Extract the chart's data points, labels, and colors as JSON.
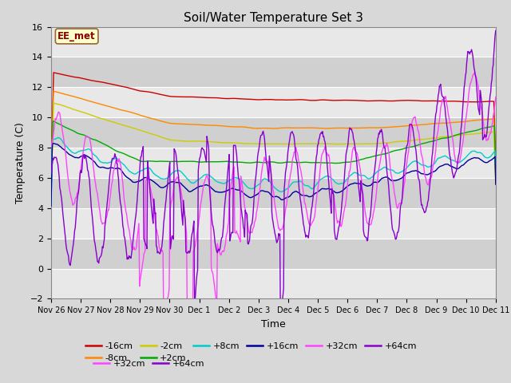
{
  "title": "Soil/Water Temperature Set 3",
  "xlabel": "Time",
  "ylabel": "Temperature (C)",
  "ylim": [
    -2,
    16
  ],
  "yticks": [
    -2,
    0,
    2,
    4,
    6,
    8,
    10,
    12,
    14,
    16
  ],
  "fig_bg": "#d8d8d8",
  "plot_bg": "#e8e8e8",
  "band_light": "#e8e8e8",
  "band_dark": "#d0d0d0",
  "annotation_text": "EE_met",
  "annotation_box_color": "#ffffcc",
  "annotation_border_color": "#996633",
  "legend_order": [
    "-16cm",
    "-8cm",
    "-2cm",
    "+2cm",
    "+8cm",
    "+16cm",
    "+32cm",
    "+64cm"
  ],
  "legend_colors": {
    "-16cm": "#cc0000",
    "-8cm": "#ff8800",
    "-2cm": "#cccc00",
    "+2cm": "#00aa00",
    "+8cm": "#00cccc",
    "+16cm": "#000099",
    "+32cm": "#ff44ff",
    "+64cm": "#8800cc"
  },
  "xtick_labels": [
    "Nov 26",
    "Nov 27",
    "Nov 28",
    "Nov 29",
    "Nov 30",
    "Dec 1",
    "Dec 2",
    "Dec 3",
    "Dec 4",
    "Dec 5",
    "Dec 6",
    "Dec 7",
    "Dec 8",
    "Dec 9",
    "Dec 10",
    "Dec 11"
  ],
  "num_points": 720
}
